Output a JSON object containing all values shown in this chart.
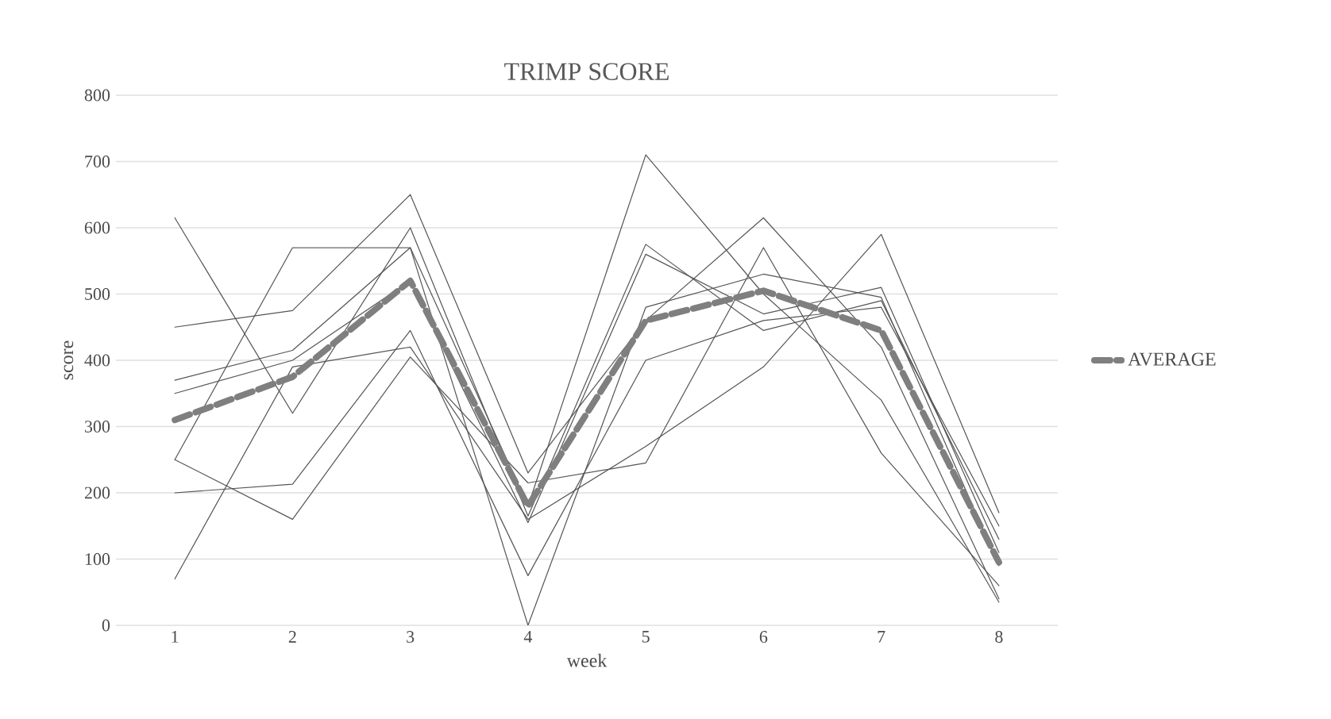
{
  "chart_data": {
    "type": "line",
    "title": "TRIMP SCORE",
    "xlabel": "week",
    "ylabel": "score",
    "x": [
      1,
      2,
      3,
      4,
      5,
      6,
      7,
      8
    ],
    "ylim": [
      0,
      800
    ],
    "yticks": [
      0,
      100,
      200,
      300,
      400,
      500,
      600,
      700,
      800
    ],
    "xlim": [
      0.5,
      8.5
    ],
    "xticks": [
      1,
      2,
      3,
      4,
      5,
      6,
      7,
      8
    ],
    "grid": "y",
    "legend": "right",
    "series": [
      {
        "color": "#555555",
        "values": [
          615,
          320,
          600,
          165,
          575,
          445,
          490,
          130
        ]
      },
      {
        "color": "#555555",
        "values": [
          450,
          475,
          650,
          230,
          460,
          615,
          420,
          40
        ]
      },
      {
        "color": "#555555",
        "values": [
          370,
          415,
          570,
          180,
          710,
          500,
          340,
          35
        ]
      },
      {
        "color": "#555555",
        "values": [
          350,
          400,
          520,
          155,
          560,
          470,
          510,
          110
        ]
      },
      {
        "color": "#555555",
        "values": [
          250,
          570,
          570,
          0,
          480,
          530,
          495,
          90
        ]
      },
      {
        "color": "#555555",
        "values": [
          250,
          160,
          405,
          215,
          245,
          570,
          260,
          60
        ]
      },
      {
        "color": "#555555",
        "values": [
          200,
          213,
          445,
          75,
          400,
          460,
          480,
          150
        ]
      },
      {
        "color": "#555555",
        "values": [
          70,
          390,
          420,
          160,
          270,
          390,
          590,
          170
        ]
      },
      {
        "name": "AVERAGE",
        "color": "#7f7f7f",
        "line_style": "dashed",
        "values": [
          310,
          375,
          520,
          180,
          460,
          505,
          445,
          95
        ]
      }
    ]
  }
}
